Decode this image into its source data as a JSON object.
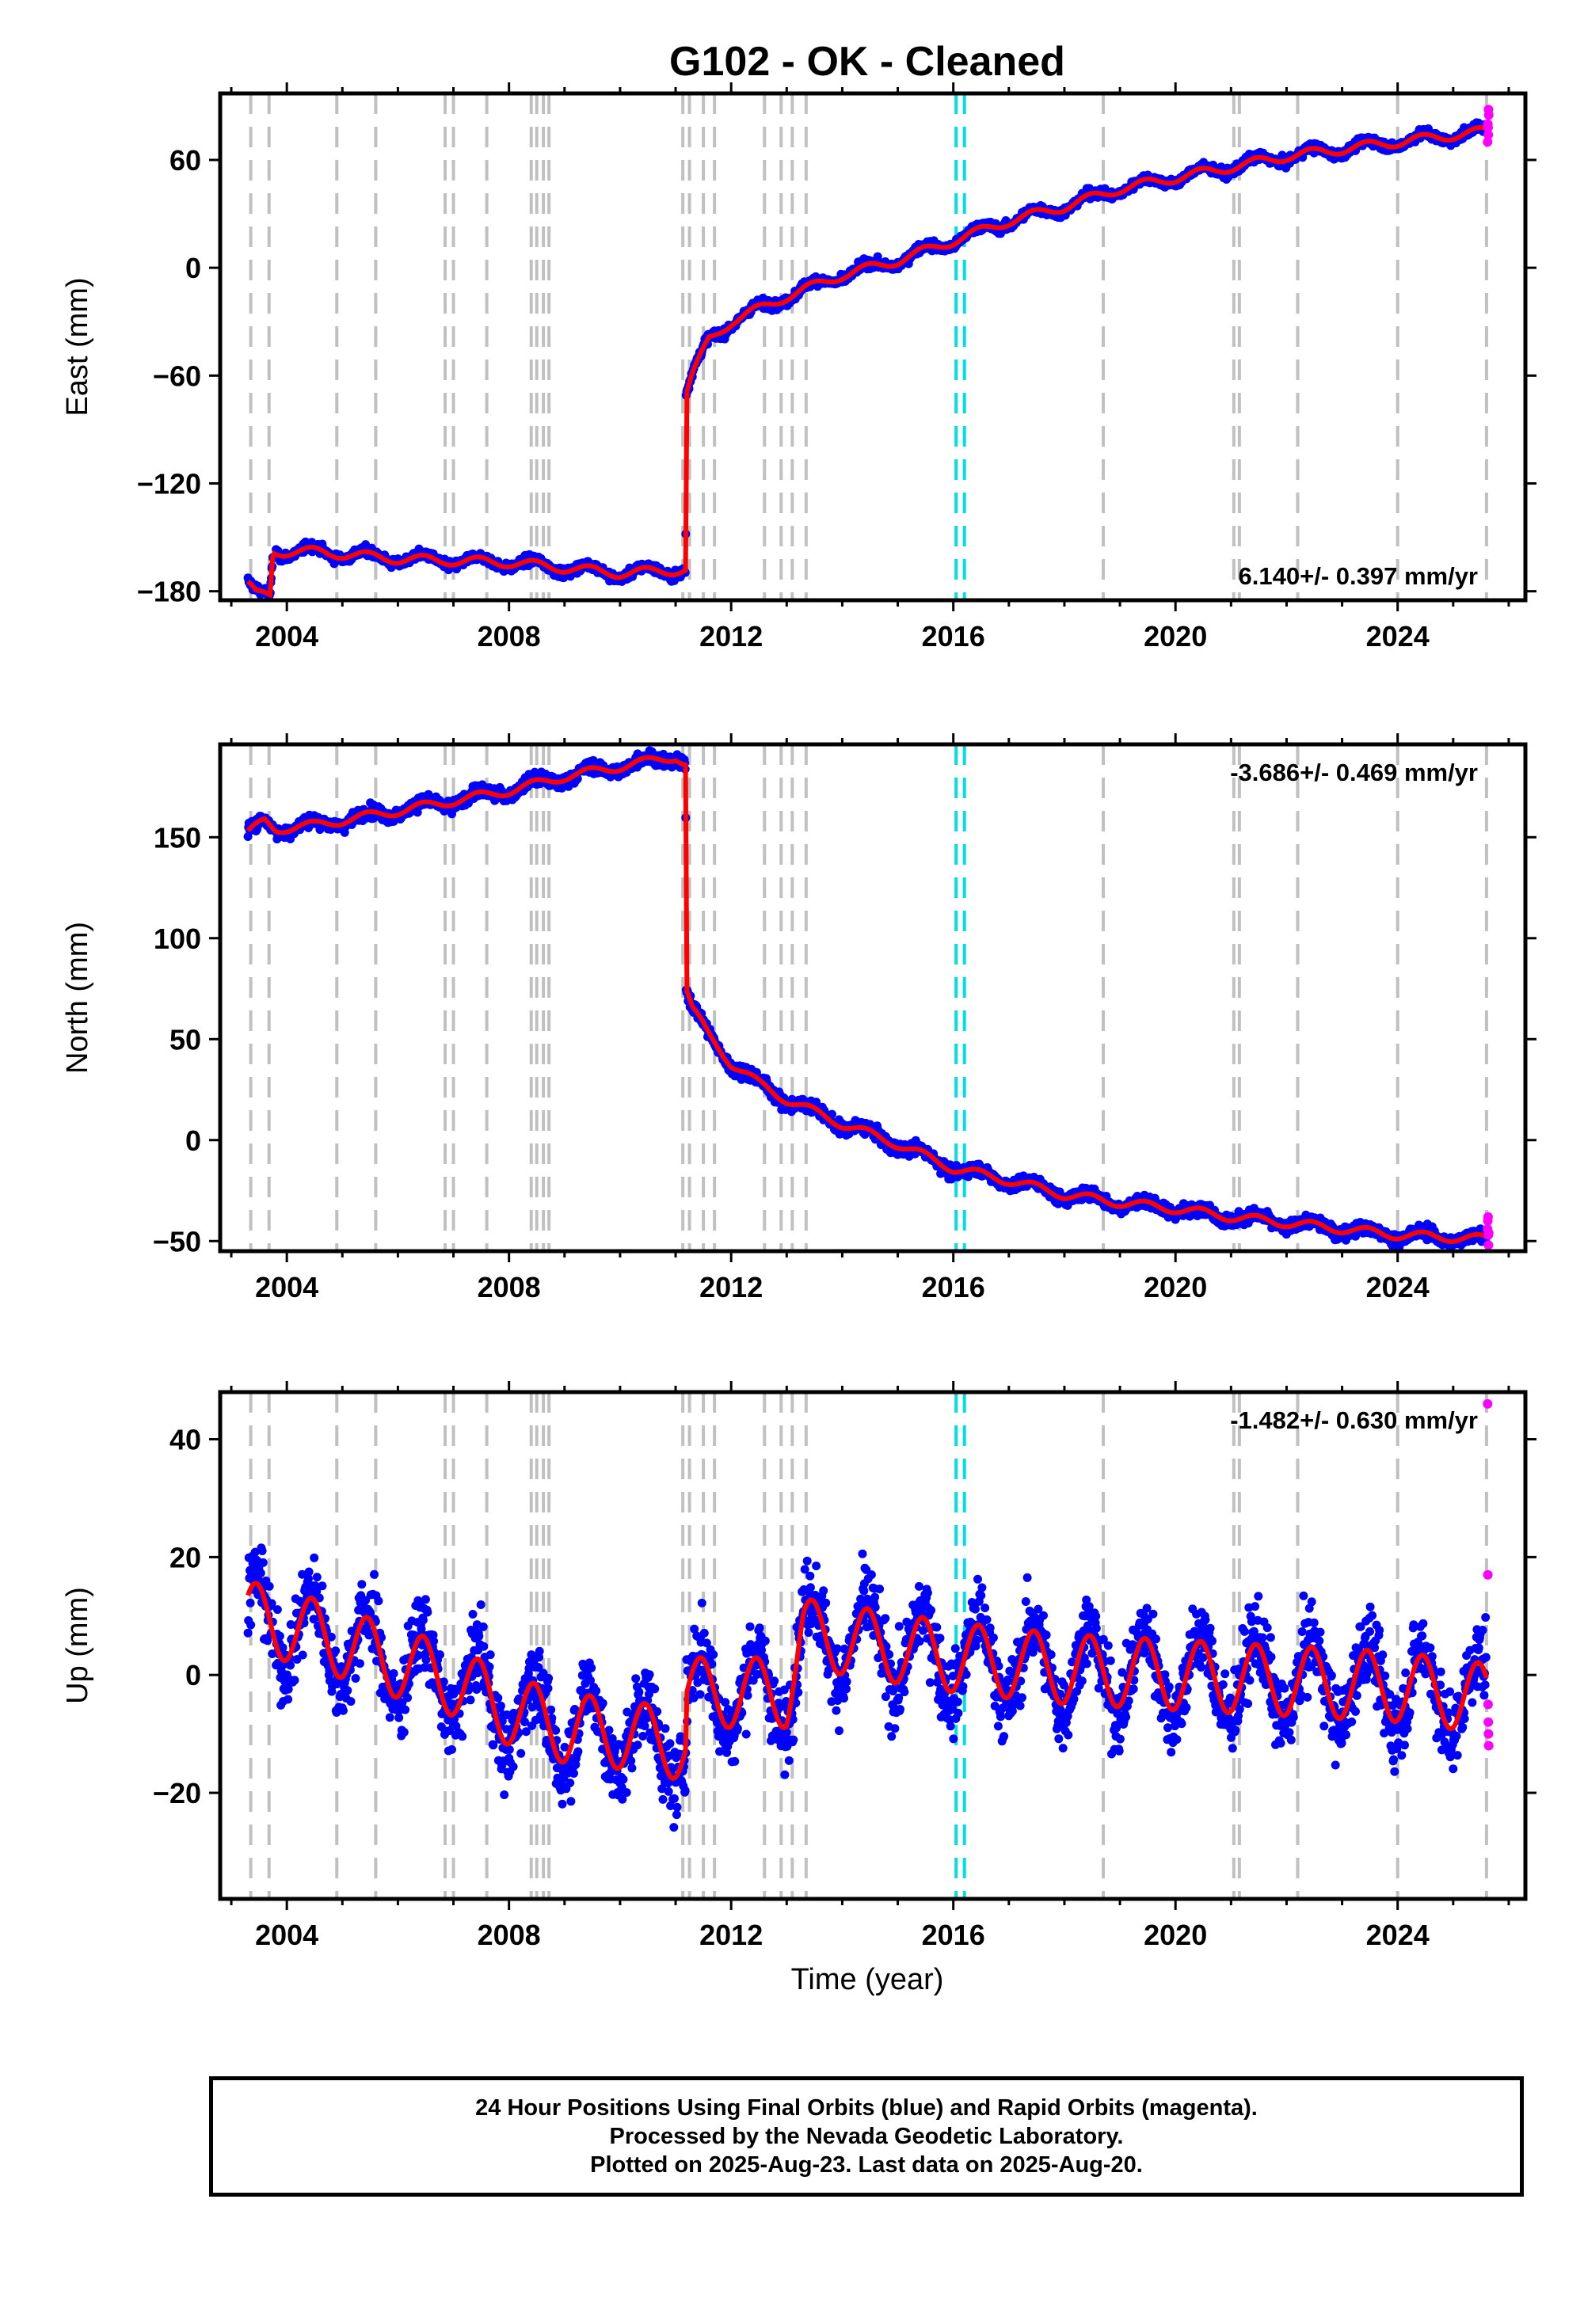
{
  "title": "G102  - OK - Cleaned",
  "xlabel": "Time (year)",
  "caption": [
    "24 Hour Positions Using Final Orbits (blue) and Rapid Orbits (magenta).",
    "Processed by the Nevada Geodetic Laboratory.",
    "Plotted on 2025-Aug-23. Last data on 2025-Aug-20."
  ],
  "colors": {
    "final_orbits": "#0000ff",
    "rapid_orbits": "#ff00ff",
    "model_fit": "#ff0000",
    "equipment_change_lines": "#c0c0c0",
    "antenna_change_line": "#00e0e0"
  },
  "chart_data": [
    {
      "type": "scatter",
      "panel": "east",
      "ylabel": "East (mm)",
      "rate_label": "6.140+/- 0.397 mm/yr",
      "xlim": [
        2002.8,
        2026.3
      ],
      "ylim": [
        -185,
        97
      ],
      "xticks": [
        2004,
        2008,
        2012,
        2016,
        2020,
        2024
      ],
      "yticks": [
        -180,
        -120,
        -60,
        0,
        60
      ],
      "grid": false,
      "trend": [
        [
          2003.3,
          -176
        ],
        [
          2003.45,
          -182
        ],
        [
          2003.7,
          -182
        ],
        [
          2003.75,
          -158
        ],
        [
          2004.5,
          -158
        ],
        [
          2006.0,
          -162
        ],
        [
          2008.0,
          -164
        ],
        [
          2010.0,
          -170
        ],
        [
          2011.18,
          -168
        ],
        [
          2011.19,
          -70
        ],
        [
          2011.3,
          -60
        ],
        [
          2011.6,
          -40
        ],
        [
          2012.0,
          -30
        ],
        [
          2013.0,
          -16
        ],
        [
          2014.0,
          -4
        ],
        [
          2015.0,
          4
        ],
        [
          2016.0,
          15
        ],
        [
          2017.0,
          26
        ],
        [
          2018.0,
          34
        ],
        [
          2019.0,
          44
        ],
        [
          2020.0,
          50
        ],
        [
          2021.0,
          56
        ],
        [
          2022.0,
          62
        ],
        [
          2023.0,
          66
        ],
        [
          2024.0,
          70
        ],
        [
          2025.6,
          76
        ]
      ],
      "seasonal_amplitude": 3,
      "noise": 2,
      "rapid_values": [
        70,
        80,
        78,
        74,
        88,
        85
      ],
      "vlines_gray": [
        2003.35,
        2003.68,
        2004.9,
        2005.6,
        2006.85,
        2007.0,
        2007.6,
        2008.4,
        2008.5,
        2008.62,
        2008.72,
        2011.13,
        2011.25,
        2011.5,
        2011.7,
        2012.6,
        2012.9,
        2013.1,
        2013.35,
        2018.7,
        2021.05,
        2021.15,
        2022.2,
        2024.0,
        2025.6
      ],
      "vlines_cyan": [
        2016.05,
        2016.2
      ]
    },
    {
      "type": "scatter",
      "panel": "north",
      "ylabel": "North (mm)",
      "rate_label": "-3.686+/- 0.469 mm/yr",
      "xlim": [
        2002.8,
        2026.3
      ],
      "ylim": [
        -55,
        196
      ],
      "xticks": [
        2004,
        2008,
        2012,
        2016,
        2020,
        2024
      ],
      "yticks": [
        -50,
        0,
        50,
        100,
        150
      ],
      "grid": false,
      "trend": [
        [
          2003.3,
          152
        ],
        [
          2003.6,
          158
        ],
        [
          2003.8,
          154
        ],
        [
          2004.5,
          156
        ],
        [
          2006.0,
          163
        ],
        [
          2008.0,
          173
        ],
        [
          2009.0,
          180
        ],
        [
          2010.0,
          185
        ],
        [
          2011.0,
          190
        ],
        [
          2011.18,
          186
        ],
        [
          2011.19,
          75
        ],
        [
          2011.3,
          65
        ],
        [
          2011.6,
          52
        ],
        [
          2012.0,
          38
        ],
        [
          2012.5,
          28
        ],
        [
          2013.0,
          20
        ],
        [
          2014.0,
          8
        ],
        [
          2015.0,
          -2
        ],
        [
          2016.0,
          -14
        ],
        [
          2017.0,
          -20
        ],
        [
          2018.0,
          -27
        ],
        [
          2019.0,
          -31
        ],
        [
          2020.0,
          -34
        ],
        [
          2021.0,
          -38
        ],
        [
          2022.0,
          -41
        ],
        [
          2023.0,
          -44
        ],
        [
          2024.0,
          -47
        ],
        [
          2025.6,
          -49
        ]
      ],
      "seasonal_amplitude": 2.5,
      "noise": 2.5,
      "rapid_values": [
        -44,
        -40,
        -38,
        -47,
        -52,
        -46
      ],
      "vlines_gray": [
        2003.35,
        2003.68,
        2004.9,
        2005.6,
        2006.85,
        2007.0,
        2007.6,
        2008.4,
        2008.5,
        2008.62,
        2008.72,
        2011.13,
        2011.25,
        2011.5,
        2011.7,
        2012.6,
        2012.9,
        2013.1,
        2013.35,
        2018.7,
        2021.05,
        2021.15,
        2022.2,
        2024.0,
        2025.6
      ],
      "vlines_cyan": [
        2016.05,
        2016.2
      ]
    },
    {
      "type": "scatter",
      "panel": "up",
      "ylabel": "Up (mm)",
      "rate_label": "-1.482+/- 0.630 mm/yr",
      "xlim": [
        2002.8,
        2026.3
      ],
      "ylim": [
        -38,
        48
      ],
      "xticks": [
        2004,
        2008,
        2012,
        2016,
        2020,
        2024
      ],
      "yticks": [
        -20,
        0,
        20,
        40
      ],
      "grid": false,
      "trend": [
        [
          2003.3,
          10
        ],
        [
          2004.5,
          7
        ],
        [
          2006.0,
          2
        ],
        [
          2007.0,
          -1
        ],
        [
          2008.0,
          -6
        ],
        [
          2009.0,
          -9
        ],
        [
          2010.0,
          -10
        ],
        [
          2011.18,
          -12
        ],
        [
          2011.2,
          -3
        ],
        [
          2012.0,
          -3
        ],
        [
          2013.0,
          -3
        ],
        [
          2013.3,
          7
        ],
        [
          2014.0,
          6
        ],
        [
          2016.0,
          3
        ],
        [
          2018.0,
          1
        ],
        [
          2020.0,
          0
        ],
        [
          2022.0,
          -1
        ],
        [
          2024.0,
          -2
        ],
        [
          2025.6,
          -4
        ]
      ],
      "seasonal_amplitude": 7,
      "noise": 5,
      "rapid_values": [
        46,
        17,
        -5,
        -8,
        -10,
        -12
      ],
      "vlines_gray": [
        2003.35,
        2003.68,
        2004.9,
        2005.6,
        2006.85,
        2007.0,
        2007.6,
        2008.4,
        2008.5,
        2008.62,
        2008.72,
        2011.13,
        2011.25,
        2011.5,
        2011.7,
        2012.6,
        2012.9,
        2013.1,
        2013.35,
        2018.7,
        2021.05,
        2021.15,
        2022.2,
        2024.0,
        2025.6
      ],
      "vlines_cyan": [
        2016.05,
        2016.2
      ]
    }
  ]
}
